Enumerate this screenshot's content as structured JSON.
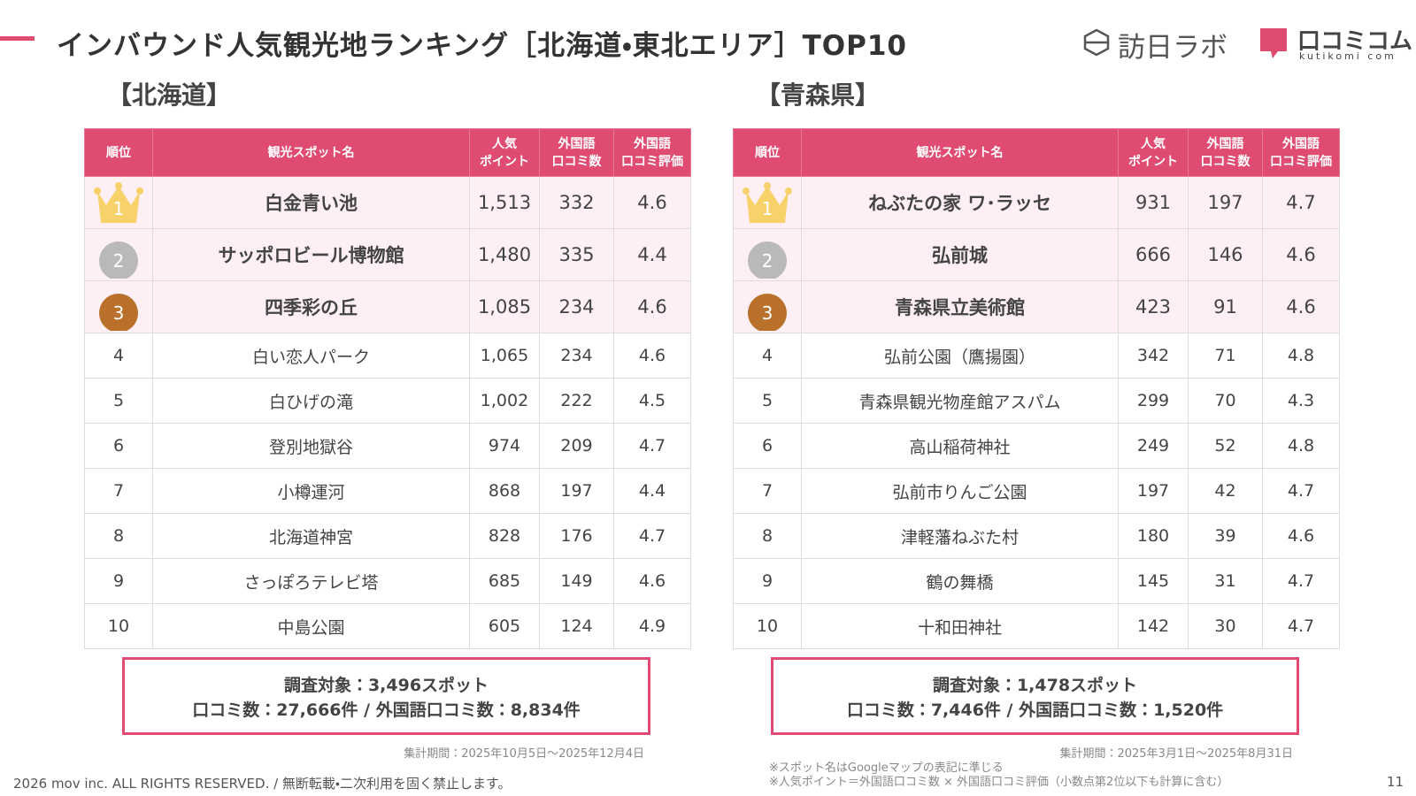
{
  "header": {
    "title": "インバウンド人気観光地ランキング［北海道・東北エリア］TOP10",
    "logo_1": "訪日ラボ",
    "logo_2": "口コミコム",
    "logo_2_sub": "kutikomi com"
  },
  "columns": [
    [
      "順位"
    ],
    [
      "観光スポット名"
    ],
    [
      "人気",
      "ポイント"
    ],
    [
      "外国語",
      "口コミ数"
    ],
    [
      "外国語",
      "口コミ評価"
    ]
  ],
  "sections": [
    {
      "heading": "【北海道】",
      "rows": [
        [
          "1",
          "白金青い池",
          "1,513",
          "332",
          "4.6"
        ],
        [
          "2",
          "サッポロビール博物館",
          "1,480",
          "335",
          "4.4"
        ],
        [
          "3",
          "四季彩の丘",
          "1,085",
          "234",
          "4.6"
        ],
        [
          "4",
          "白い恋人パーク",
          "1,065",
          "234",
          "4.6"
        ],
        [
          "5",
          "白ひげの滝",
          "1,002",
          "222",
          "4.5"
        ],
        [
          "6",
          "登別地獄谷",
          "974",
          "209",
          "4.7"
        ],
        [
          "7",
          "小樽運河",
          "868",
          "197",
          "4.4"
        ],
        [
          "8",
          "北海道神宮",
          "828",
          "176",
          "4.7"
        ],
        [
          "9",
          "さっぽろテレビ塔",
          "685",
          "149",
          "4.6"
        ],
        [
          "10",
          "中島公園",
          "605",
          "124",
          "4.9"
        ]
      ],
      "summary": [
        "調査対象：3,496スポット",
        "口コミ数：27,666件 / 外国語口コミ数：8,834件"
      ],
      "period": "集計期間：2025年10月5日〜2025年12月4日"
    },
    {
      "heading": "【青森県】",
      "rows": [
        [
          "1",
          "ねぶたの家 ワ･ラッセ",
          "931",
          "197",
          "4.7"
        ],
        [
          "2",
          "弘前城",
          "666",
          "146",
          "4.6"
        ],
        [
          "3",
          "青森県立美術館",
          "423",
          "91",
          "4.6"
        ],
        [
          "4",
          "弘前公園（鷹揚園）",
          "342",
          "71",
          "4.8"
        ],
        [
          "5",
          "青森県観光物産館アスパム",
          "299",
          "70",
          "4.3"
        ],
        [
          "6",
          "高山稲荷神社",
          "249",
          "52",
          "4.8"
        ],
        [
          "7",
          "弘前市りんご公園",
          "197",
          "42",
          "4.7"
        ],
        [
          "8",
          "津軽藩ねぶた村",
          "180",
          "39",
          "4.6"
        ],
        [
          "9",
          "鶴の舞橋",
          "145",
          "31",
          "4.7"
        ],
        [
          "10",
          "十和田神社",
          "142",
          "30",
          "4.7"
        ]
      ],
      "summary": [
        "調査対象：1,478スポット",
        "口コミ数：7,446件 / 外国語口コミ数：1,520件"
      ],
      "period": "集計期間：2025年3月1日〜2025年8月31日"
    }
  ],
  "notes": [
    "※スポット名はGoogleマップの表記に準じる",
    "※人気ポイント＝外国語口コミ数 × 外国語口コミ評価（小数点第2位以下も計算に含む）"
  ],
  "footer": {
    "copyright": "2026 mov inc. ALL RIGHTS RESERVED. / 無断転載・二次利用を固く禁止します。",
    "page": "11"
  }
}
